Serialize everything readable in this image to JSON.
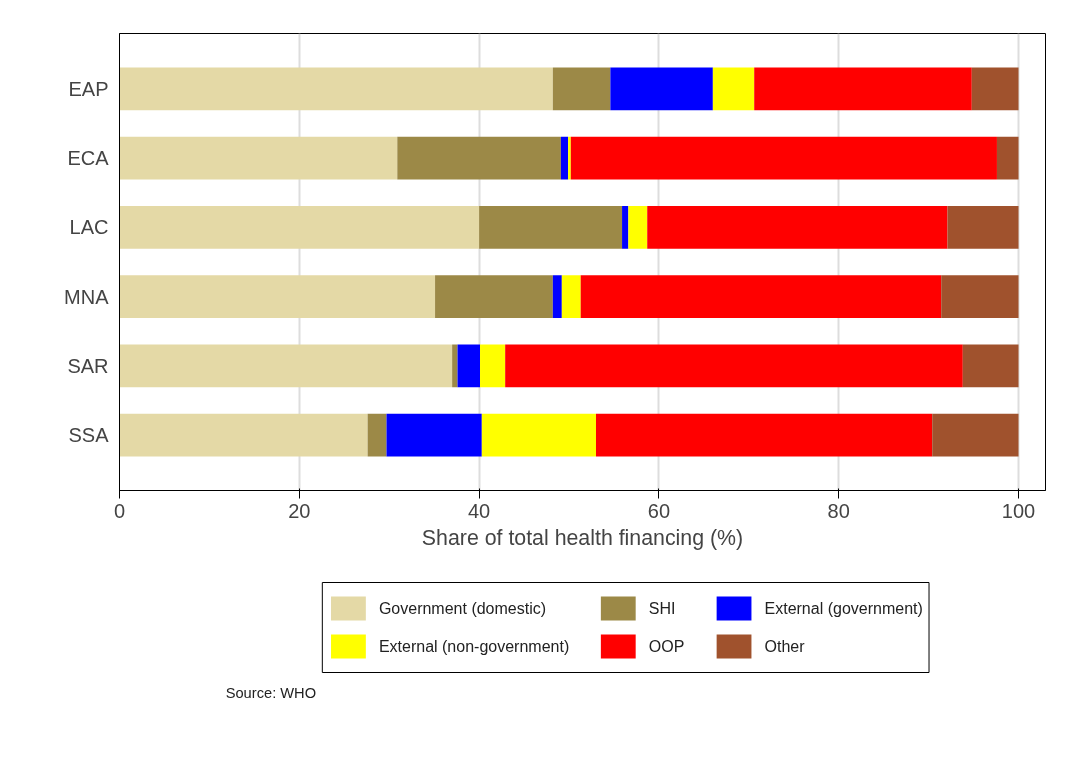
{
  "chart_data": {
    "type": "bar",
    "orientation": "horizontal",
    "stacked": true,
    "categories": [
      "EAP",
      "ECA",
      "LAC",
      "MNA",
      "SAR",
      "SSA"
    ],
    "series": [
      {
        "name": "Government (domestic)",
        "color": "#e4d9a6",
        "values": [
          48.2,
          30.9,
          40.0,
          35.1,
          37.0,
          27.6
        ]
      },
      {
        "name": "SHI",
        "color": "#9c8947",
        "values": [
          6.4,
          18.2,
          15.9,
          13.1,
          0.6,
          2.1
        ]
      },
      {
        "name": "External (government)",
        "color": "#0000ff",
        "values": [
          11.4,
          0.8,
          0.7,
          1.0,
          2.5,
          10.6
        ]
      },
      {
        "name": "External (non-government)",
        "color": "#ffff00",
        "values": [
          4.6,
          0.3,
          2.1,
          2.1,
          2.8,
          12.7
        ]
      },
      {
        "name": "OOP",
        "color": "#ff0000",
        "values": [
          24.2,
          47.4,
          33.4,
          40.1,
          50.9,
          37.4
        ]
      },
      {
        "name": "Other",
        "color": "#a0522d",
        "values": [
          5.2,
          2.4,
          7.9,
          8.6,
          6.2,
          9.6
        ]
      }
    ],
    "xlabel": "Share of total health financing (%)",
    "xlim": [
      0,
      103
    ],
    "xticks": [
      0,
      20,
      40,
      60,
      80,
      100
    ],
    "grid": "x",
    "legend": "bottom",
    "annotations": [
      "Source: WHO"
    ]
  }
}
